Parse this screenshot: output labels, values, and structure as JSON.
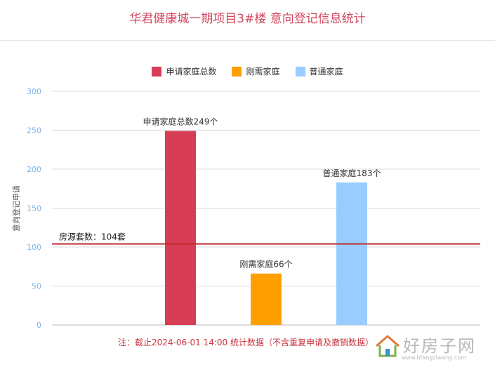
{
  "title": "华君健康城一期项目3#楼 意向登记信息统计",
  "footnote": "注：截止2024-06-01 14:00 统计数据（不含重复申请及撤销数据）",
  "watermark": {
    "name": "好房子网",
    "url": "www.hfangziwang.com"
  },
  "colors": {
    "total": "#d83d56",
    "rigid": "#ff9f00",
    "ordinary": "#99ccff",
    "reference": "#c0272d",
    "axis_text": "#7cb5ec"
  },
  "chart_data": {
    "type": "bar",
    "title": "华君健康城一期项目3#楼 意向登记信息统计",
    "ylabel": "意向登记申请",
    "ylim": [
      0,
      300
    ],
    "yticks": [
      0,
      50,
      100,
      150,
      200,
      250,
      300
    ],
    "grid": true,
    "legend_position": "top-center",
    "series": [
      {
        "name": "申请家庭总数",
        "value": 249,
        "label": "申请家庭总数249个",
        "color": "#d83d56"
      },
      {
        "name": "刚需家庭",
        "value": 66,
        "label": "刚需家庭66个",
        "color": "#ff9f00"
      },
      {
        "name": "普通家庭",
        "value": 183,
        "label": "普通家庭183个",
        "color": "#99ccff"
      }
    ],
    "reference_line": {
      "value": 104,
      "label": "房源套数：104套",
      "color": "#c0272d"
    }
  }
}
